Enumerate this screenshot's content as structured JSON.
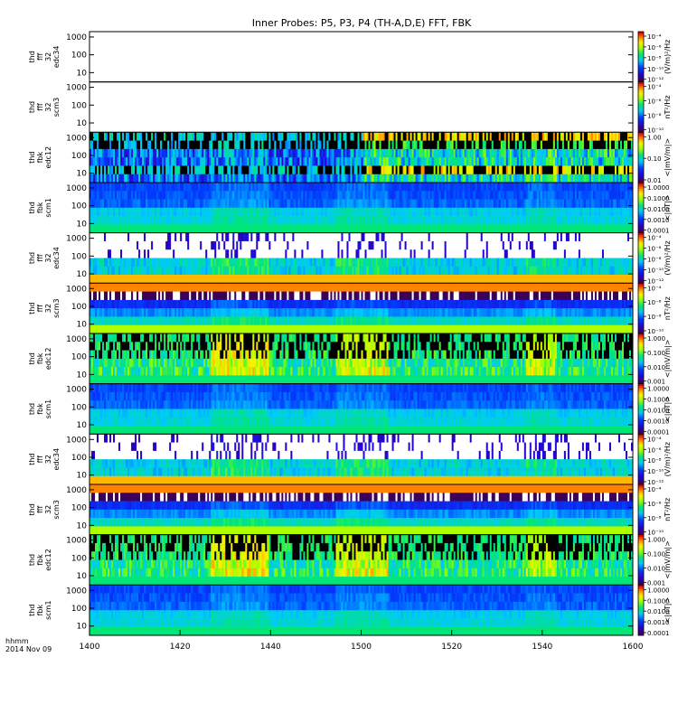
{
  "chart_data": {
    "type": "heatmap",
    "title": "Inner Probes: P5, P3, P4 (TH-A,D,E) FFT, FBK",
    "x_ticks": [
      "1400",
      "1420",
      "1440",
      "1500",
      "1520",
      "1540",
      "1600"
    ],
    "x_label_lines": [
      "hhmm",
      "2014 Nov 09"
    ],
    "y_ticks": [
      "10",
      "100",
      "1000"
    ],
    "panels": [
      {
        "label": [
          "thd",
          "fff",
          "32",
          "edc34"
        ],
        "kind": "empty",
        "bar_ticks": [
          "10⁻⁴",
          "10⁻⁶",
          "10⁻⁸",
          "10⁻¹⁰",
          "10⁻¹²"
        ],
        "bar_unit": "(V/m)²/Hz"
      },
      {
        "label": [
          "thd",
          "fff",
          "32",
          "scm3"
        ],
        "kind": "empty",
        "bar_ticks": [
          "10⁻⁴",
          "10⁻⁶",
          "10⁻⁸",
          "10⁻¹⁰"
        ],
        "bar_unit": "nT²/Hz"
      },
      {
        "label": [
          "thd",
          "fbk",
          "edc12"
        ],
        "kind": "fbk_e",
        "bar_ticks": [
          "1.00",
          "0.10",
          "0.01"
        ],
        "bar_unit": "<|mV/m|>"
      },
      {
        "label": [
          "thd",
          "fbk",
          "scm1"
        ],
        "kind": "fbk_b",
        "bar_ticks": [
          "1.0000",
          "0.1000",
          "0.0100",
          "0.0010",
          "0.0001"
        ],
        "bar_unit": "<|nT|>"
      },
      {
        "label": [
          "thd",
          "fff",
          "32",
          "edc34"
        ],
        "kind": "fff_e",
        "bar_ticks": [
          "10⁻⁴",
          "10⁻⁶",
          "10⁻⁸",
          "10⁻¹⁰",
          "10⁻¹²"
        ],
        "bar_unit": "(V/m)²/Hz"
      },
      {
        "label": [
          "thd",
          "fff",
          "32",
          "scm3"
        ],
        "kind": "fff_b",
        "bar_ticks": [
          "10⁻⁴",
          "10⁻⁶",
          "10⁻⁸",
          "10⁻¹⁰"
        ],
        "bar_unit": "nT²/Hz"
      },
      {
        "label": [
          "thd",
          "fbk",
          "edc12"
        ],
        "kind": "fbk_e2",
        "bar_ticks": [
          "1.000",
          "0.100",
          "0.010",
          "0.001"
        ],
        "bar_unit": "<|mV/m|>"
      },
      {
        "label": [
          "thd",
          "fbk",
          "scm1"
        ],
        "kind": "fbk_b",
        "bar_ticks": [
          "1.0000",
          "0.1000",
          "0.0100",
          "0.0010",
          "0.0001"
        ],
        "bar_unit": "<|nT|>"
      },
      {
        "label": [
          "thd",
          "fff",
          "32",
          "edc34"
        ],
        "kind": "fff_e",
        "bar_ticks": [
          "10⁻⁴",
          "10⁻⁶",
          "10⁻⁸",
          "10⁻¹⁰",
          "10⁻¹²"
        ],
        "bar_unit": "(V/m)²/Hz"
      },
      {
        "label": [
          "thd",
          "fff",
          "32",
          "scm3"
        ],
        "kind": "fff_b",
        "bar_ticks": [
          "10⁻⁴",
          "10⁻⁶",
          "10⁻⁸",
          "10⁻¹⁰"
        ],
        "bar_unit": "nT²/Hz"
      },
      {
        "label": [
          "thd",
          "fbk",
          "edc12"
        ],
        "kind": "fbk_e2",
        "bar_ticks": [
          "1.000",
          "0.100",
          "0.010",
          "0.001"
        ],
        "bar_unit": "<|mV/m|>"
      },
      {
        "label": [
          "thd",
          "fbk",
          "scm1"
        ],
        "kind": "fbk_b",
        "bar_ticks": [
          "1.0000",
          "0.1000",
          "0.0100",
          "0.0010",
          "0.0001"
        ],
        "bar_unit": "<|nT|>"
      }
    ]
  }
}
